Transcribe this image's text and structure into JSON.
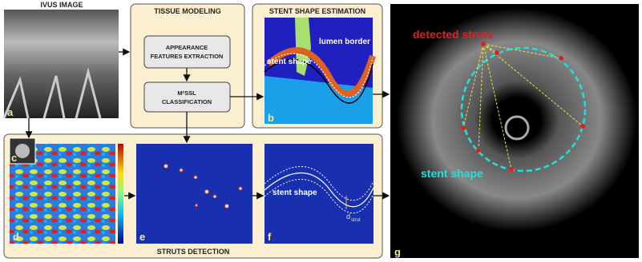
{
  "ivus": {
    "title": "IVUS IMAGE",
    "letter": "a"
  },
  "tissue_modeling": {
    "title": "TISSUE MODELING",
    "steps": [
      {
        "lines": [
          "APPEARANCE",
          "FEATURES EXTRACTION"
        ]
      },
      {
        "lines": [
          "M²SSL",
          "CLASSIFICATION"
        ]
      }
    ]
  },
  "stent_shape_estimation": {
    "title": "STENT SHAPE ESTIMATION",
    "letter": "b",
    "labels": [
      "lumen border",
      "stent shape"
    ]
  },
  "struts_detection": {
    "title": "STRUTS DETECTION",
    "letters": [
      "c",
      "d",
      "e",
      "f"
    ],
    "stent_label": "stent shape",
    "distance": {
      "symbol": "d",
      "subscript": "strut"
    }
  },
  "result": {
    "letter": "g",
    "detected": "detected struts",
    "stent": "stent shape"
  }
}
